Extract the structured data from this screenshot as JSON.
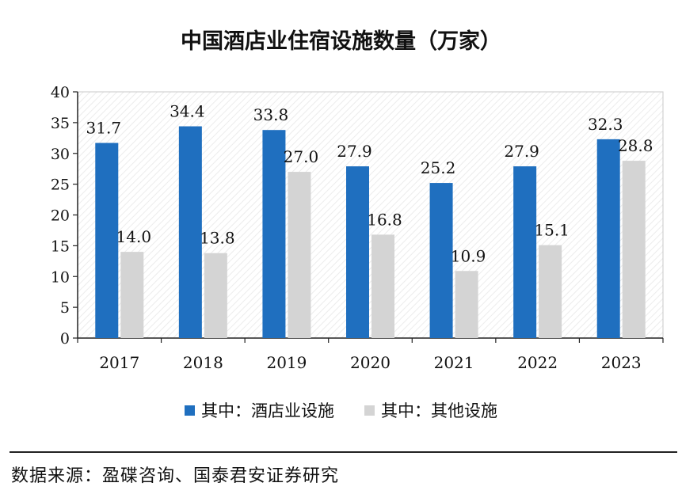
{
  "chart_data": {
    "type": "bar",
    "title": "中国酒店业住宿设施数量（万家）",
    "categories": [
      "2017",
      "2018",
      "2019",
      "2020",
      "2021",
      "2022",
      "2023"
    ],
    "series": [
      {
        "name": "其中：酒店业设施",
        "color": "#1f6fbf",
        "values": [
          31.7,
          34.4,
          33.8,
          27.9,
          25.2,
          27.9,
          32.3
        ]
      },
      {
        "name": "其中：其他设施",
        "color": "#d4d4d4",
        "values": [
          14.0,
          13.8,
          27.0,
          16.8,
          10.9,
          15.1,
          28.8
        ]
      }
    ],
    "ylim": [
      0,
      40
    ],
    "yticks": [
      0,
      5,
      10,
      15,
      20,
      25,
      30,
      35,
      40
    ],
    "grid": false,
    "legend_position": "bottom"
  },
  "footer": {
    "source": "数据来源：盈碟咨询、国泰君安证券研究"
  }
}
